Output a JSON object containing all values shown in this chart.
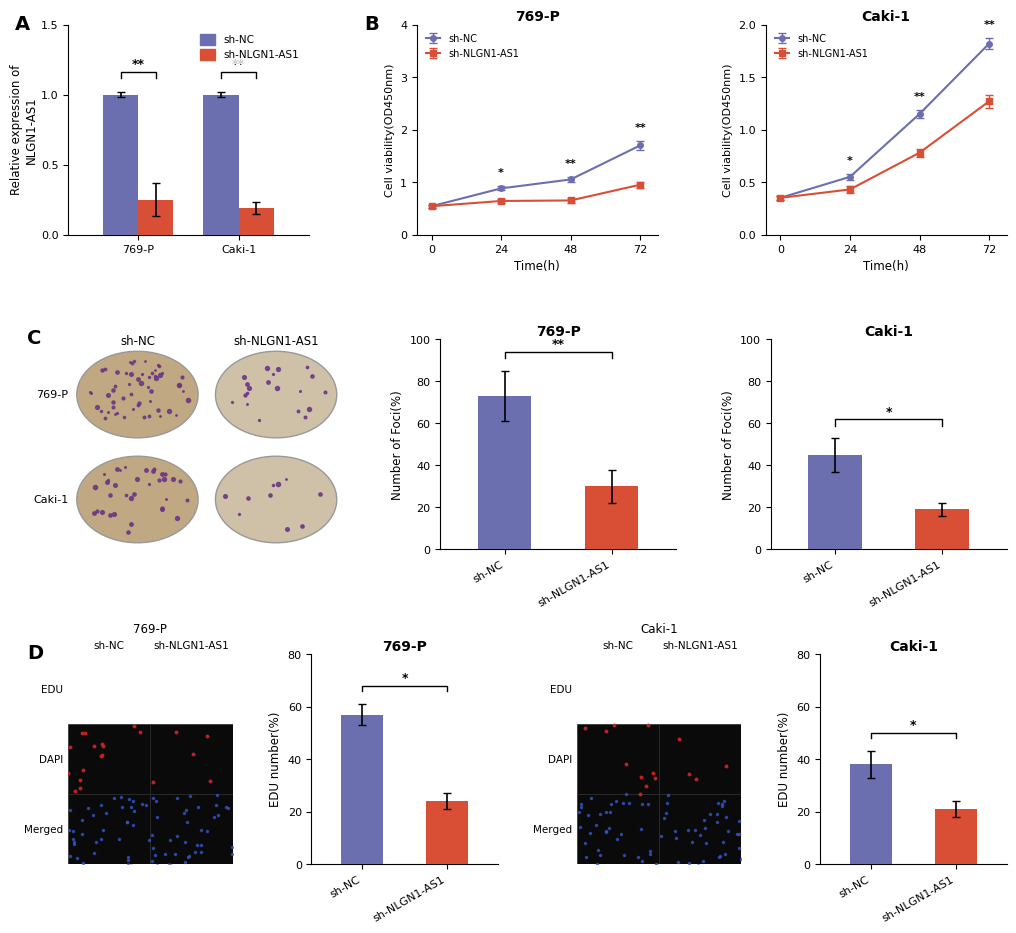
{
  "panel_A": {
    "categories": [
      "769-P",
      "Caki-1"
    ],
    "sh_nc_values": [
      1.0,
      1.0
    ],
    "sh_nlgn_values": [
      0.25,
      0.19
    ],
    "sh_nc_errors": [
      0.02,
      0.02
    ],
    "sh_nlgn_errors": [
      0.12,
      0.04
    ],
    "sh_nc_color": "#6b6faf",
    "sh_nlgn_color": "#d94f36",
    "ylabel": "Relative expression of\nNLGN1-AS1",
    "ylim": [
      0,
      1.5
    ],
    "yticks": [
      0.0,
      0.5,
      1.0,
      1.5
    ],
    "significance": [
      "**",
      "**"
    ]
  },
  "panel_B_769P": {
    "title": "769-P",
    "time_points": [
      0,
      24,
      48,
      72
    ],
    "sh_nc_values": [
      0.54,
      0.88,
      1.05,
      1.7
    ],
    "sh_nlgn_values": [
      0.54,
      0.64,
      0.65,
      0.95
    ],
    "sh_nc_errors": [
      0.03,
      0.04,
      0.05,
      0.08
    ],
    "sh_nlgn_errors": [
      0.03,
      0.04,
      0.04,
      0.06
    ],
    "ylabel": "Cell viability(OD450nm)",
    "xlabel": "Time(h)",
    "ylim": [
      0,
      4
    ],
    "yticks": [
      0,
      1,
      2,
      3,
      4
    ],
    "significance_times": [
      24,
      48,
      72
    ],
    "significance_labels": [
      "*",
      "**",
      "**"
    ],
    "sh_nc_color": "#6b6faf",
    "sh_nlgn_color": "#d94f36"
  },
  "panel_B_Caki1": {
    "title": "Caki-1",
    "time_points": [
      0,
      24,
      48,
      72
    ],
    "sh_nc_values": [
      0.35,
      0.55,
      1.15,
      1.82
    ],
    "sh_nlgn_values": [
      0.35,
      0.43,
      0.78,
      1.27
    ],
    "sh_nc_errors": [
      0.02,
      0.03,
      0.04,
      0.05
    ],
    "sh_nlgn_errors": [
      0.02,
      0.03,
      0.04,
      0.06
    ],
    "ylabel": "Cell viability(OD450nm)",
    "xlabel": "Time(h)",
    "ylim": [
      0,
      2.0
    ],
    "yticks": [
      0.0,
      0.5,
      1.0,
      1.5,
      2.0
    ],
    "significance_times": [
      24,
      48,
      72
    ],
    "significance_labels": [
      "*",
      "**",
      "**"
    ],
    "sh_nc_color": "#6b6faf",
    "sh_nlgn_color": "#d94f36"
  },
  "panel_C_769P": {
    "title": "769-P",
    "categories": [
      "sh-NC",
      "sh-NLGN1-AS1"
    ],
    "values": [
      73,
      30
    ],
    "errors": [
      12,
      8
    ],
    "colors": [
      "#6b6faf",
      "#d94f36"
    ],
    "ylabel": "Number of Foci(%)",
    "ylim": [
      0,
      100
    ],
    "yticks": [
      0,
      20,
      40,
      60,
      80,
      100
    ],
    "significance": "**"
  },
  "panel_C_Caki1": {
    "title": "Caki-1",
    "categories": [
      "sh-NC",
      "sh-NLGN1-AS1"
    ],
    "values": [
      45,
      19
    ],
    "errors": [
      8,
      3
    ],
    "colors": [
      "#6b6faf",
      "#d94f36"
    ],
    "ylabel": "Number of Foci(%)",
    "ylim": [
      0,
      100
    ],
    "yticks": [
      0,
      20,
      40,
      60,
      80,
      100
    ],
    "significance": "*"
  },
  "panel_D_769P_bar": {
    "title": "769-P",
    "categories": [
      "sh-NC",
      "sh-NLGN1-AS1"
    ],
    "values": [
      57,
      24
    ],
    "errors": [
      4,
      3
    ],
    "colors": [
      "#6b6faf",
      "#d94f36"
    ],
    "ylabel": "EDU number(%)",
    "ylim": [
      0,
      80
    ],
    "yticks": [
      0,
      20,
      40,
      60,
      80
    ],
    "significance": "*"
  },
  "panel_D_Caki1_bar": {
    "title": "Caki-1",
    "categories": [
      "sh-NC",
      "sh-NLGN1-AS1"
    ],
    "values": [
      38,
      21
    ],
    "errors": [
      5,
      3
    ],
    "colors": [
      "#6b6faf",
      "#d94f36"
    ],
    "ylabel": "EDU number(%)",
    "ylim": [
      0,
      80
    ],
    "yticks": [
      0,
      20,
      40,
      60,
      80
    ],
    "significance": "*"
  },
  "colors": {
    "sh_nc_bar": "#6b6faf",
    "sh_nlgn_bar": "#d94f36",
    "edu_dot": "#cc2222",
    "dapi_dot": "#3355cc",
    "micro_bg": "#0a0a0a",
    "colony_bg_dense": "#c0a882",
    "colony_bg_sparse": "#cfc0a8",
    "colony_dot": "#6b3585"
  },
  "legend_labels": {
    "sh_nc": "sh-NC",
    "sh_nlgn": "sh-NLGN1-AS1"
  }
}
